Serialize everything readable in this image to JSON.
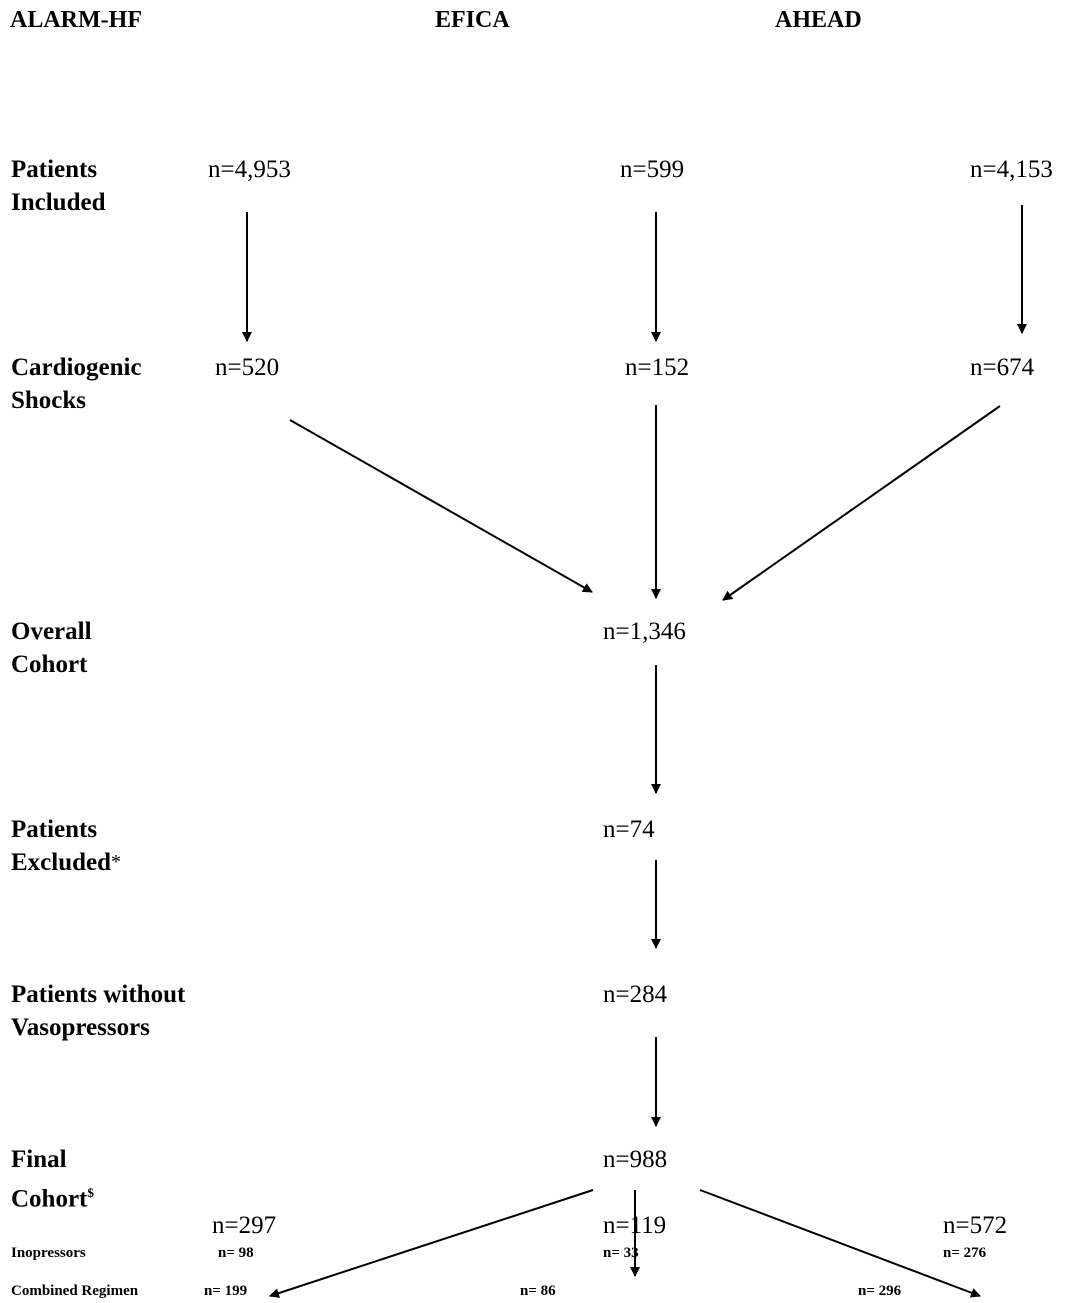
{
  "header": {
    "columns": [
      "ALARM-HF",
      "EFICA",
      "AHEAD"
    ]
  },
  "rows": [
    {
      "label": [
        "Patients",
        "Included"
      ],
      "values": [
        "n=4,953",
        "n=599",
        "n=4,153"
      ]
    },
    {
      "label": [
        "Cardiogenic",
        "Shocks"
      ],
      "values": [
        "n=520",
        "n=152",
        "n=674"
      ]
    },
    {
      "label": [
        "Overall",
        "Cohort"
      ],
      "value": "n=1,346"
    },
    {
      "label": [
        "Patients",
        "Excluded"
      ],
      "note": "*",
      "value": "n=74"
    },
    {
      "label": [
        "Patients without",
        "Vasopressors"
      ],
      "value": "n=284"
    },
    {
      "label": [
        "Final",
        "Cohort"
      ],
      "superscript": "$",
      "value": "n=988"
    }
  ],
  "groups": {
    "values": [
      "n=297",
      "n=119",
      "n=572"
    ],
    "subrows": [
      {
        "label": "Inopressors",
        "values": [
          "n= 98",
          "n= 33",
          "n= 276"
        ]
      },
      {
        "label": "Combined Regimen",
        "values": [
          "n= 199",
          "n= 86",
          "n= 296"
        ]
      }
    ]
  }
}
